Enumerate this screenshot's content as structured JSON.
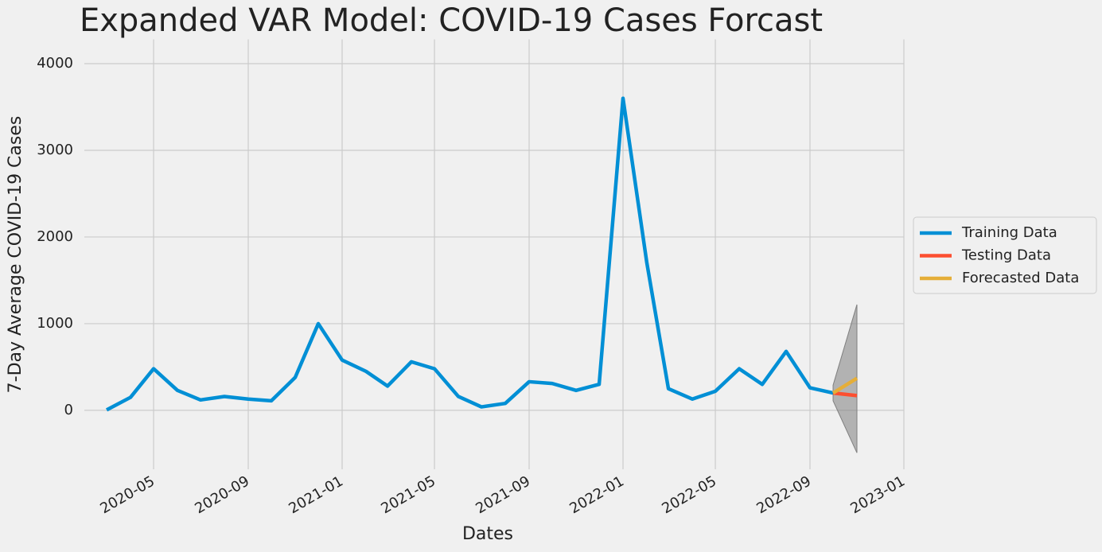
{
  "chart_data": {
    "type": "line",
    "title": "Expanded VAR Model: COVID-19 Cases Forcast",
    "x_label": "Dates",
    "y_label": "7-Day Average COVID-19 Cases",
    "series": [
      {
        "name": "Training Data",
        "color": "#008fd5",
        "x": [
          "2020-03",
          "2020-04",
          "2020-05",
          "2020-06",
          "2020-07",
          "2020-08",
          "2020-09",
          "2020-10",
          "2020-11",
          "2020-12",
          "2021-01",
          "2021-02",
          "2021-03",
          "2021-04",
          "2021-05",
          "2021-06",
          "2021-07",
          "2021-08",
          "2021-09",
          "2021-10",
          "2021-11",
          "2021-12",
          "2022-01",
          "2022-02",
          "2022-03",
          "2022-04",
          "2022-05",
          "2022-06",
          "2022-07",
          "2022-08",
          "2022-09",
          "2022-10"
        ],
        "values": [
          5,
          150,
          480,
          230,
          120,
          160,
          130,
          110,
          380,
          1000,
          580,
          450,
          280,
          560,
          480,
          160,
          40,
          80,
          330,
          310,
          230,
          300,
          3600,
          1700,
          250,
          130,
          220,
          480,
          300,
          680,
          260,
          200
        ]
      },
      {
        "name": "Testing Data",
        "color": "#fc4f30",
        "x": [
          "2022-10",
          "2022-11"
        ],
        "values": [
          200,
          170
        ]
      },
      {
        "name": "Forecasted Data",
        "color": "#e5ae38",
        "x": [
          "2022-10",
          "2022-11"
        ],
        "values": [
          200,
          370
        ]
      }
    ],
    "band": {
      "color": "#808080",
      "x": [
        "2022-10",
        "2022-11"
      ],
      "lower": [
        110,
        -490
      ],
      "upper": [
        290,
        1220
      ]
    },
    "xlim": [
      "2020-02",
      "2023-01"
    ],
    "xticks": [
      "2020-05",
      "2020-09",
      "2021-01",
      "2021-05",
      "2021-09",
      "2022-01",
      "2022-05",
      "2022-09",
      "2023-01"
    ],
    "ylim": [
      -680,
      4280
    ],
    "yticks": [
      0,
      1000,
      2000,
      3000,
      4000
    ],
    "grid": true,
    "legend": "right"
  }
}
